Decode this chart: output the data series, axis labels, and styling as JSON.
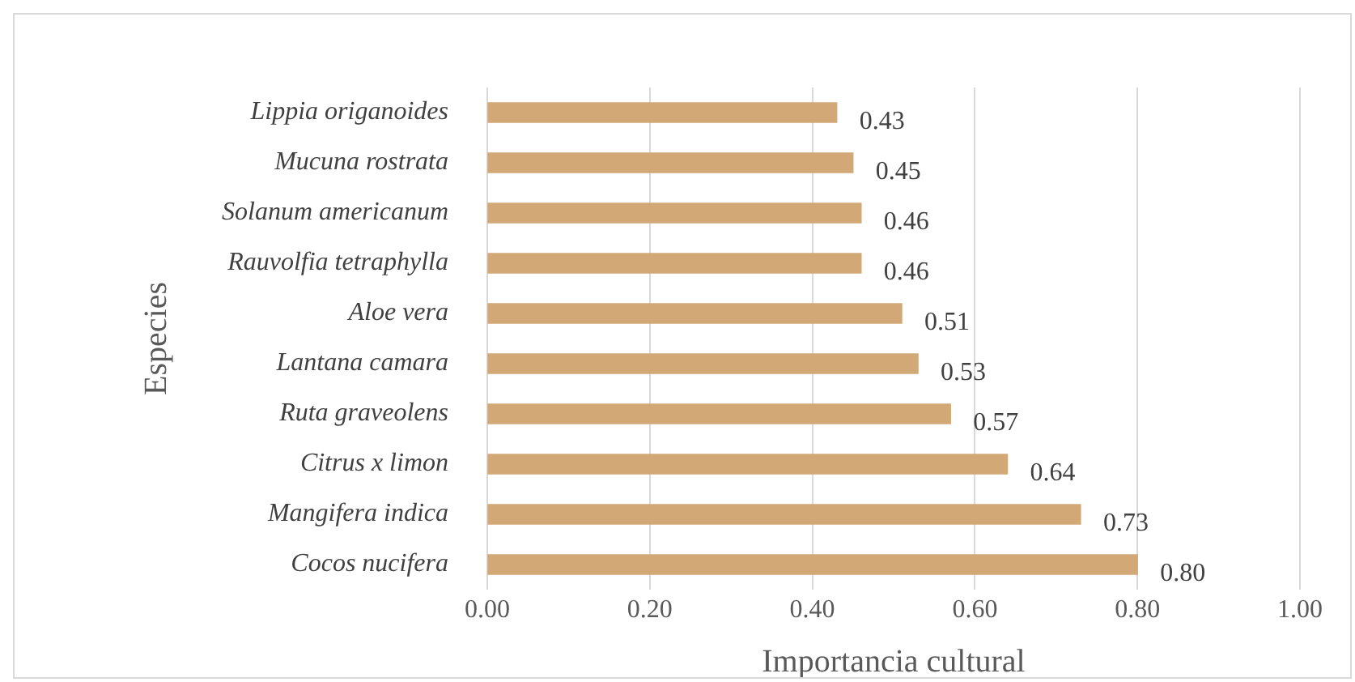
{
  "chart_data": {
    "type": "bar",
    "orientation": "horizontal",
    "xlabel": "Importancia cultural",
    "ylabel": "Especies",
    "categories": [
      "Lippia origanoides",
      "Mucuna rostrata",
      "Solanum americanum",
      "Rauvolfia tetraphylla",
      "Aloe vera",
      "Lantana camara",
      "Ruta graveolens",
      "Citrus x limon",
      "Mangifera indica",
      "Cocos nucifera"
    ],
    "values": [
      0.43,
      0.45,
      0.46,
      0.46,
      0.51,
      0.53,
      0.57,
      0.64,
      0.73,
      0.8
    ],
    "value_labels": [
      "0.43",
      "0.45",
      "0.46",
      "0.46",
      "0.51",
      "0.53",
      "0.57",
      "0.64",
      "0.73",
      "0.80"
    ],
    "color": "#d2a877",
    "xlim": [
      0,
      1
    ],
    "xticks": [
      {
        "value": 0,
        "label": "0.00"
      },
      {
        "value": 0.2,
        "label": "0.20"
      },
      {
        "value": 0.4,
        "label": "0.40"
      },
      {
        "value": 0.6,
        "label": "0.60"
      },
      {
        "value": 0.8,
        "label": "0.80"
      },
      {
        "value": 1,
        "label": "1.00"
      }
    ],
    "grid": "x",
    "legend": false
  }
}
